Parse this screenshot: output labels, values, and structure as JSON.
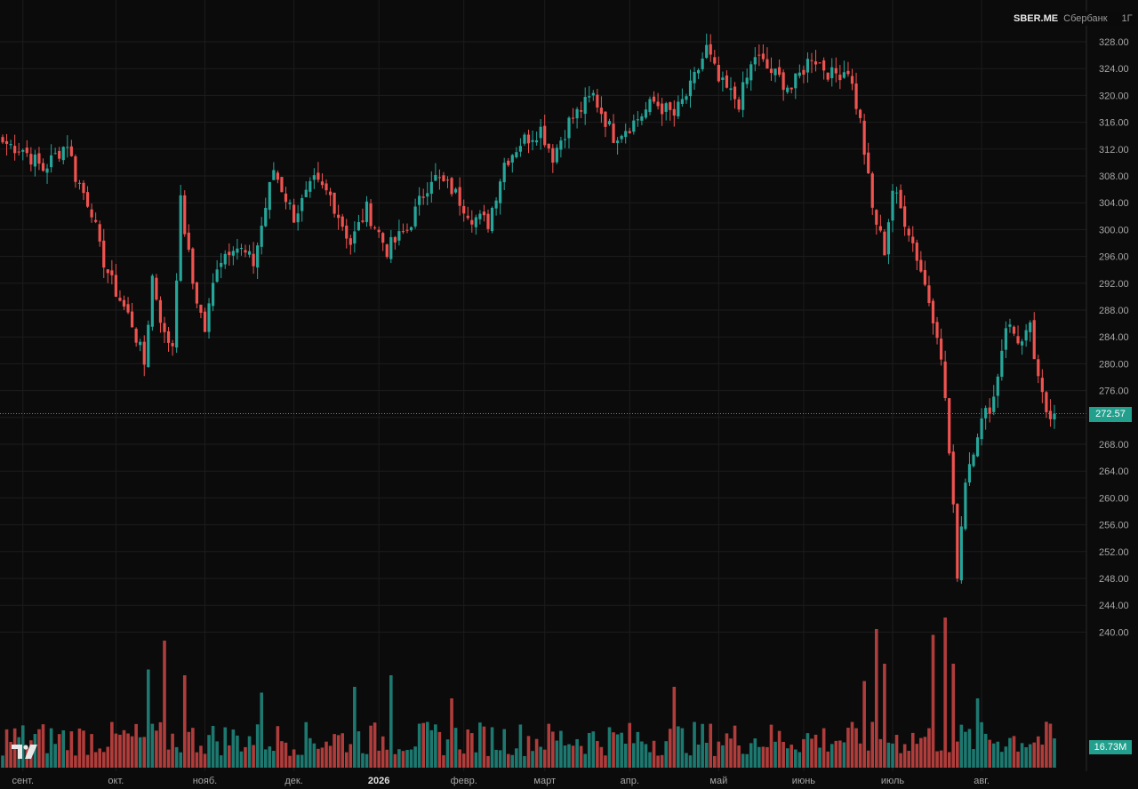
{
  "header": {
    "ticker": "SBER.ME",
    "company": "Сбербанк",
    "timeframe": "1Г"
  },
  "last_price_label": "272.57",
  "volume_label": "16.73M",
  "colors": {
    "background": "#0b0b0b",
    "up": "#26a69a",
    "down": "#ef5350",
    "grid": "#1c1c1c",
    "price_line": "#22a08d"
  },
  "chart_data": {
    "type": "candlestick",
    "y_range": [
      240,
      330
    ],
    "y_ticks": [
      "240.00",
      "244.00",
      "248.00",
      "252.00",
      "256.00",
      "260.00",
      "264.00",
      "268.00",
      "272.00",
      "276.00",
      "280.00",
      "284.00",
      "288.00",
      "292.00",
      "296.00",
      "300.00",
      "304.00",
      "308.00",
      "312.00",
      "316.00",
      "320.00",
      "324.00",
      "328.00"
    ],
    "x_ticks": [
      {
        "label": "сент.",
        "i": 5,
        "bold": false
      },
      {
        "label": "окт.",
        "i": 28,
        "bold": false
      },
      {
        "label": "нояб.",
        "i": 50,
        "bold": false
      },
      {
        "label": "дек.",
        "i": 72,
        "bold": false
      },
      {
        "label": "2026",
        "i": 93,
        "bold": true
      },
      {
        "label": "февр.",
        "i": 114,
        "bold": false
      },
      {
        "label": "март",
        "i": 134,
        "bold": false
      },
      {
        "label": "апр.",
        "i": 155,
        "bold": false
      },
      {
        "label": "май",
        "i": 177,
        "bold": false
      },
      {
        "label": "июнь",
        "i": 198,
        "bold": false
      },
      {
        "label": "июль",
        "i": 220,
        "bold": false
      },
      {
        "label": "авг.",
        "i": 242,
        "bold": false
      }
    ],
    "last_price": 272.57,
    "close_path": [
      [
        0,
        313
      ],
      [
        5,
        312
      ],
      [
        10,
        309
      ],
      [
        16,
        313
      ],
      [
        18,
        308
      ],
      [
        22,
        303
      ],
      [
        24,
        297
      ],
      [
        27,
        292
      ],
      [
        32,
        286
      ],
      [
        35,
        280
      ],
      [
        37,
        293
      ],
      [
        40,
        284
      ],
      [
        42,
        283
      ],
      [
        44,
        304
      ],
      [
        47,
        292
      ],
      [
        50,
        285
      ],
      [
        53,
        295
      ],
      [
        57,
        298
      ],
      [
        62,
        295
      ],
      [
        67,
        309
      ],
      [
        72,
        302
      ],
      [
        77,
        307
      ],
      [
        81,
        305
      ],
      [
        86,
        298
      ],
      [
        90,
        303
      ],
      [
        95,
        297
      ],
      [
        100,
        300
      ],
      [
        106,
        308
      ],
      [
        111,
        306
      ],
      [
        116,
        302
      ],
      [
        120,
        301
      ],
      [
        124,
        310
      ],
      [
        128,
        313
      ],
      [
        133,
        315
      ],
      [
        136,
        311
      ],
      [
        140,
        316
      ],
      [
        146,
        320
      ],
      [
        151,
        314
      ],
      [
        156,
        316
      ],
      [
        161,
        319
      ],
      [
        166,
        317
      ],
      [
        170,
        321
      ],
      [
        174,
        327
      ],
      [
        177,
        322
      ],
      [
        182,
        319
      ],
      [
        186,
        326
      ],
      [
        189,
        324
      ],
      [
        195,
        321
      ],
      [
        200,
        326
      ],
      [
        205,
        323
      ],
      [
        209,
        324
      ],
      [
        212,
        316
      ],
      [
        215,
        303
      ],
      [
        218,
        297
      ],
      [
        220,
        306
      ],
      [
        224,
        300
      ],
      [
        227,
        294
      ],
      [
        231,
        285
      ],
      [
        233,
        275
      ],
      [
        235,
        258
      ],
      [
        236,
        249
      ],
      [
        238,
        263
      ],
      [
        241,
        270
      ],
      [
        245,
        275
      ],
      [
        248,
        286
      ],
      [
        252,
        283
      ],
      [
        254,
        285
      ],
      [
        256,
        277
      ],
      [
        258,
        273
      ],
      [
        260,
        272.6
      ]
    ],
    "volume_scale": [
      0,
      28
    ],
    "volume_high_days": [
      [
        36,
        17
      ],
      [
        40,
        22
      ],
      [
        45,
        16
      ],
      [
        64,
        13
      ],
      [
        87,
        14
      ],
      [
        96,
        16
      ],
      [
        111,
        12
      ],
      [
        166,
        14
      ],
      [
        213,
        15
      ],
      [
        216,
        24
      ],
      [
        218,
        18
      ],
      [
        230,
        23
      ],
      [
        233,
        26
      ],
      [
        235,
        18
      ],
      [
        241,
        12
      ]
    ]
  }
}
